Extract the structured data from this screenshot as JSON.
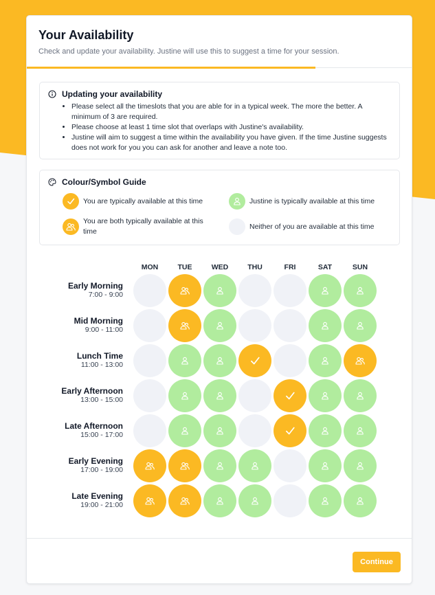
{
  "header": {
    "title": "Your Availability",
    "subtitle": "Check and update your availability. Justine will use this to suggest a time for your session."
  },
  "info": {
    "title": "Updating your availability",
    "bullets": [
      "Please select all the timeslots that you are able for in a typical week. The more the better. A minimum of 3 are required.",
      "Please choose at least 1 time slot that overlaps with Justine's availability.",
      "Justine will aim to suggest a time within the availability you have given. If the time Justine suggests does not work for you you can ask for another and leave a note too."
    ]
  },
  "guide": {
    "title": "Colour/Symbol Guide",
    "you": "You are typically available at this time",
    "justine": "Justine is typically available at this time",
    "both": "You are both typically available at this time",
    "neither": "Neither of you are available at this time"
  },
  "days": [
    "MON",
    "TUE",
    "WED",
    "THU",
    "FRI",
    "SAT",
    "SUN"
  ],
  "slots": [
    {
      "name": "Early Morning",
      "time": "7:00 - 9:00",
      "cells": [
        "none",
        "both",
        "justine",
        "none",
        "none",
        "justine",
        "justine"
      ]
    },
    {
      "name": "Mid Morning",
      "time": "9:00 - 11:00",
      "cells": [
        "none",
        "both",
        "justine",
        "none",
        "none",
        "justine",
        "justine"
      ]
    },
    {
      "name": "Lunch Time",
      "time": "11:00 - 13:00",
      "cells": [
        "none",
        "justine",
        "justine",
        "you",
        "none",
        "justine",
        "both"
      ]
    },
    {
      "name": "Early Afternoon",
      "time": "13:00 - 15:00",
      "cells": [
        "none",
        "justine",
        "justine",
        "none",
        "you",
        "justine",
        "justine"
      ]
    },
    {
      "name": "Late Afternoon",
      "time": "15:00 - 17:00",
      "cells": [
        "none",
        "justine",
        "justine",
        "none",
        "you",
        "justine",
        "justine"
      ]
    },
    {
      "name": "Early Evening",
      "time": "17:00 - 19:00",
      "cells": [
        "both",
        "both",
        "justine",
        "justine",
        "none",
        "justine",
        "justine"
      ]
    },
    {
      "name": "Late Evening",
      "time": "19:00 - 21:00",
      "cells": [
        "both",
        "both",
        "justine",
        "justine",
        "none",
        "justine",
        "justine"
      ]
    }
  ],
  "footer": {
    "continue_label": "Continue"
  },
  "colors": {
    "accent": "#fbb923",
    "justine": "#b1ec9e",
    "empty": "#f0f2f7"
  }
}
